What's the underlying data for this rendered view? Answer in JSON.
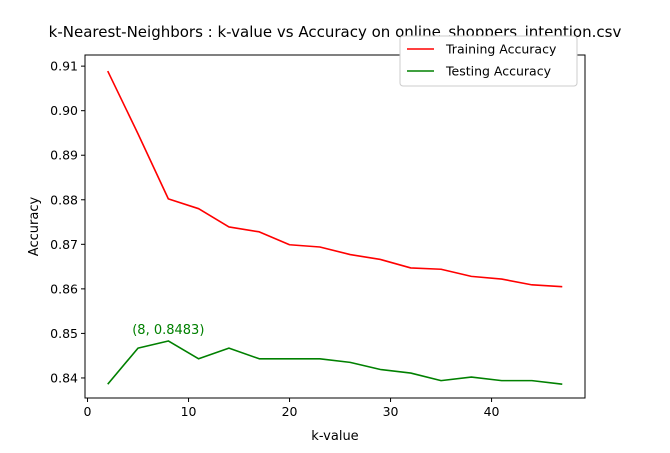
{
  "chart_data": {
    "type": "line",
    "title": "k-Nearest-Neighbors : k-value vs Accuracy on online_shoppers_intention.csv",
    "xlabel": "k-value",
    "ylabel": "Accuracy",
    "xlim": [
      -0.25,
      49.25
    ],
    "ylim": [
      0.8355,
      0.9125
    ],
    "xticks": [
      0,
      10,
      20,
      30,
      40
    ],
    "yticks": [
      0.84,
      0.85,
      0.86,
      0.87,
      0.88,
      0.89,
      0.9,
      0.91
    ],
    "ytick_labels": [
      "0.84",
      "0.85",
      "0.86",
      "0.87",
      "0.88",
      "0.89",
      "0.90",
      "0.91"
    ],
    "grid": false,
    "legend_position": "top-right",
    "x": [
      2,
      5,
      8,
      11,
      14,
      17,
      20,
      23,
      26,
      29,
      32,
      35,
      38,
      41,
      44,
      47
    ],
    "series": [
      {
        "name": "Training Accuracy",
        "color": "#ff0000",
        "values": [
          0.9089,
          0.8948,
          0.8802,
          0.878,
          0.8739,
          0.8728,
          0.8699,
          0.8694,
          0.8677,
          0.8666,
          0.8647,
          0.8644,
          0.8628,
          0.8622,
          0.8609,
          0.8605
        ]
      },
      {
        "name": "Testing Accuracy",
        "color": "#008000",
        "values": [
          0.8386,
          0.8467,
          0.8483,
          0.8443,
          0.8467,
          0.8443,
          0.8443,
          0.8443,
          0.8435,
          0.8419,
          0.8411,
          0.8394,
          0.8402,
          0.8394,
          0.8394,
          0.8386
        ]
      }
    ],
    "annotations": [
      {
        "text": "(8, 0.8483)",
        "x": 8,
        "y": 0.8483,
        "color": "#008000"
      }
    ]
  }
}
